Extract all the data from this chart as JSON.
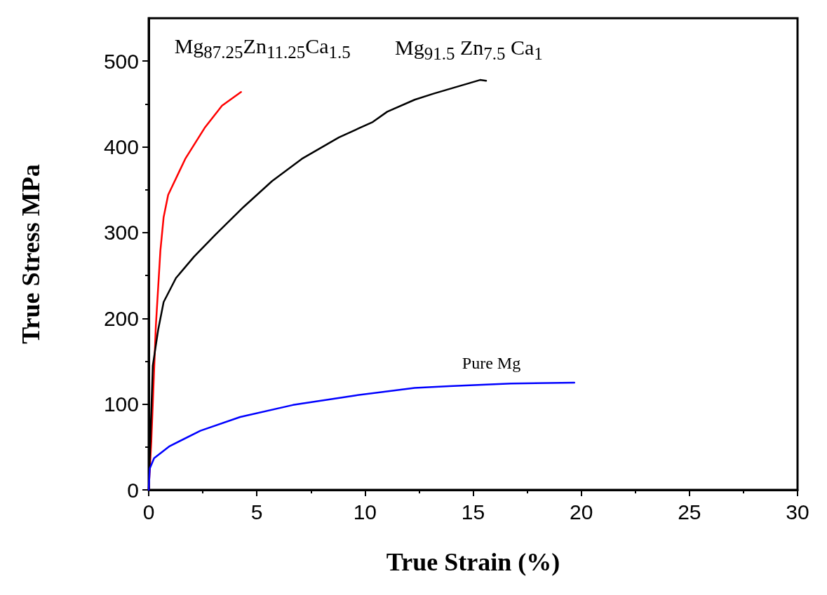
{
  "chart_data": {
    "type": "line",
    "xlabel": "True Strain (%)",
    "ylabel": "True Stress MPa",
    "xlim": [
      0,
      30
    ],
    "xticks": [
      0,
      5,
      10,
      15,
      20,
      25,
      30
    ],
    "ylim": [
      0,
      550
    ],
    "yticks": [
      0,
      100,
      200,
      300,
      400,
      500
    ],
    "grid": false,
    "legend": false,
    "marker": "none",
    "line_style": "solid",
    "series": [
      {
        "name": "Mg$_{87.25}$Zn$_{11.25}$Ca$_{1.5}$",
        "color": "#ff0000",
        "x": [
          0,
          0.12,
          0.33,
          0.54,
          0.69,
          0.9,
          1.69,
          2.61,
          3.39,
          4.27
        ],
        "values": [
          0,
          56,
          191,
          279,
          318,
          344,
          386,
          423,
          448,
          464
        ]
      },
      {
        "name": "Mg$_{91.5}$ Zn$_{7.5}$ Ca$_{1}$",
        "color": "#000000",
        "x": [
          0,
          0.19,
          0.44,
          0.69,
          1.26,
          2.1,
          3.1,
          4.39,
          5.7,
          7.08,
          8.79,
          10.36,
          11.03,
          12.3,
          13.17,
          15.32,
          15.6
        ],
        "values": [
          0,
          145,
          187,
          219,
          247,
          272,
          298,
          330,
          360,
          386,
          411,
          429,
          441,
          455,
          462,
          478,
          477
        ]
      },
      {
        "name": "Pure Mg",
        "color": "#0000ff",
        "x": [
          0,
          0.05,
          0.25,
          0.97,
          2.39,
          4.23,
          6.67,
          9.52,
          12.3,
          13.9,
          16.75,
          19.68
        ],
        "values": [
          0,
          25,
          37,
          51,
          69,
          85,
          99,
          110,
          119,
          121,
          124,
          125
        ]
      }
    ]
  }
}
